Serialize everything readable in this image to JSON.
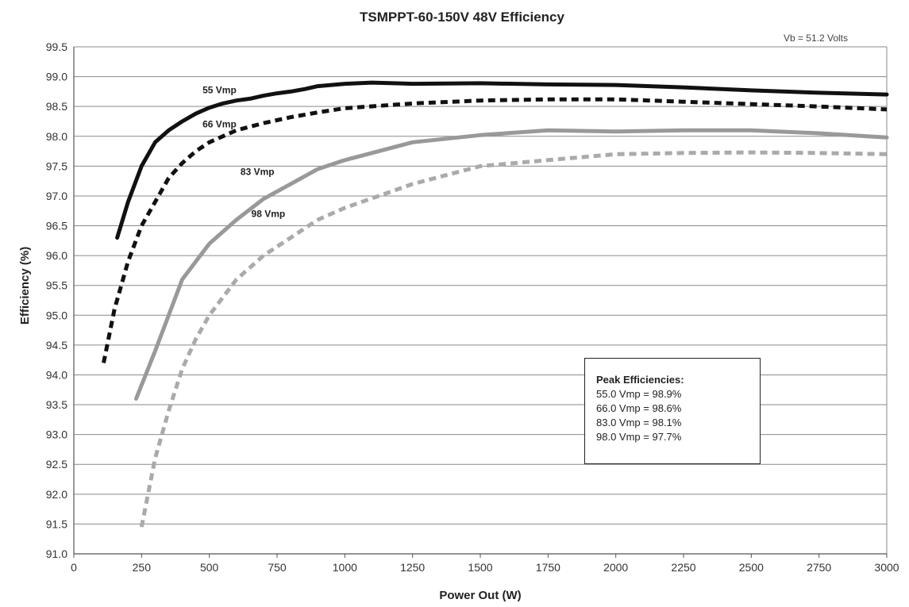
{
  "chart_data": {
    "type": "line",
    "title": "TSMPPT-60-150V 48V Efficiency",
    "xlabel": "Power Out (W)",
    "ylabel": "Efficiency (%)",
    "xlim": [
      0,
      3000
    ],
    "ylim": [
      91.0,
      99.5
    ],
    "xticks": [
      0,
      250,
      500,
      750,
      1000,
      1250,
      1500,
      1750,
      2000,
      2250,
      2500,
      2750,
      3000
    ],
    "yticks": [
      91.0,
      91.5,
      92.0,
      92.5,
      93.0,
      93.5,
      94.0,
      94.5,
      95.0,
      95.5,
      96.0,
      96.5,
      97.0,
      97.5,
      98.0,
      98.5,
      99.0,
      99.5
    ],
    "ytick_labels": [
      "91.0",
      "91.5",
      "92.0",
      "92.5",
      "93.0",
      "93.5",
      "94.0",
      "94.5",
      "95.0",
      "95.5",
      "96.0",
      "96.5",
      "97.0",
      "97.5",
      "98.0",
      "98.5",
      "99.0",
      "99.5"
    ],
    "grid": "horizontal",
    "annotation": "Vb = 51.2 Volts",
    "series": [
      {
        "name": "55 Vmp",
        "color": "#111111",
        "dash": "solid",
        "x": [
          160,
          200,
          250,
          300,
          350,
          400,
          450,
          500,
          550,
          600,
          650,
          700,
          750,
          800,
          850,
          900,
          1000,
          1100,
          1250,
          1500,
          1750,
          2000,
          2250,
          2500,
          2750,
          3000
        ],
        "y": [
          96.3,
          96.9,
          97.5,
          97.9,
          98.1,
          98.25,
          98.38,
          98.48,
          98.55,
          98.6,
          98.63,
          98.68,
          98.72,
          98.75,
          98.79,
          98.84,
          98.88,
          98.9,
          98.88,
          98.89,
          98.87,
          98.86,
          98.82,
          98.77,
          98.73,
          98.7
        ]
      },
      {
        "name": "66 Vmp",
        "color": "#111111",
        "dash": "dashed",
        "x": [
          110,
          150,
          200,
          250,
          300,
          350,
          400,
          450,
          500,
          600,
          700,
          800,
          900,
          1000,
          1250,
          1500,
          1750,
          2000,
          2250,
          2500,
          2750,
          3000
        ],
        "y": [
          94.2,
          95.1,
          95.9,
          96.5,
          96.9,
          97.3,
          97.55,
          97.75,
          97.9,
          98.1,
          98.22,
          98.32,
          98.4,
          98.47,
          98.55,
          98.6,
          98.62,
          98.62,
          98.58,
          98.54,
          98.5,
          98.45
        ]
      },
      {
        "name": "83 Vmp",
        "color": "#999999",
        "dash": "solid",
        "x": [
          230,
          300,
          350,
          400,
          450,
          500,
          600,
          700,
          800,
          900,
          1000,
          1250,
          1500,
          1750,
          2000,
          2250,
          2500,
          2750,
          3000
        ],
        "y": [
          93.6,
          94.4,
          95.0,
          95.6,
          95.9,
          96.2,
          96.6,
          96.95,
          97.2,
          97.45,
          97.6,
          97.9,
          98.02,
          98.1,
          98.08,
          98.1,
          98.1,
          98.05,
          97.98
        ]
      },
      {
        "name": "98 Vmp",
        "color": "#aaaaaa",
        "dash": "dashed",
        "x": [
          250,
          300,
          350,
          400,
          450,
          500,
          600,
          700,
          800,
          900,
          1000,
          1250,
          1500,
          1750,
          2000,
          2250,
          2500,
          2750,
          3000
        ],
        "y": [
          91.45,
          92.6,
          93.4,
          94.1,
          94.6,
          95.0,
          95.6,
          96.0,
          96.3,
          96.6,
          96.8,
          97.2,
          97.5,
          97.6,
          97.7,
          97.72,
          97.73,
          97.72,
          97.7
        ]
      }
    ],
    "series_labels": [
      {
        "text": "55 Vmp",
        "x": 600,
        "y": 98.72
      },
      {
        "text": "66 Vmp",
        "x": 600,
        "y": 98.15
      },
      {
        "text": "83 Vmp",
        "x": 740,
        "y": 97.35
      },
      {
        "text": "98 Vmp",
        "x": 780,
        "y": 96.65
      }
    ],
    "legend": {
      "position": "lower-right",
      "title": "Peak Efficiencies:",
      "entries": [
        "55.0 Vmp = 98.9%",
        "66.0 Vmp = 98.6%",
        "83.0 Vmp = 98.1%",
        "98.0 Vmp = 97.7%"
      ]
    }
  }
}
